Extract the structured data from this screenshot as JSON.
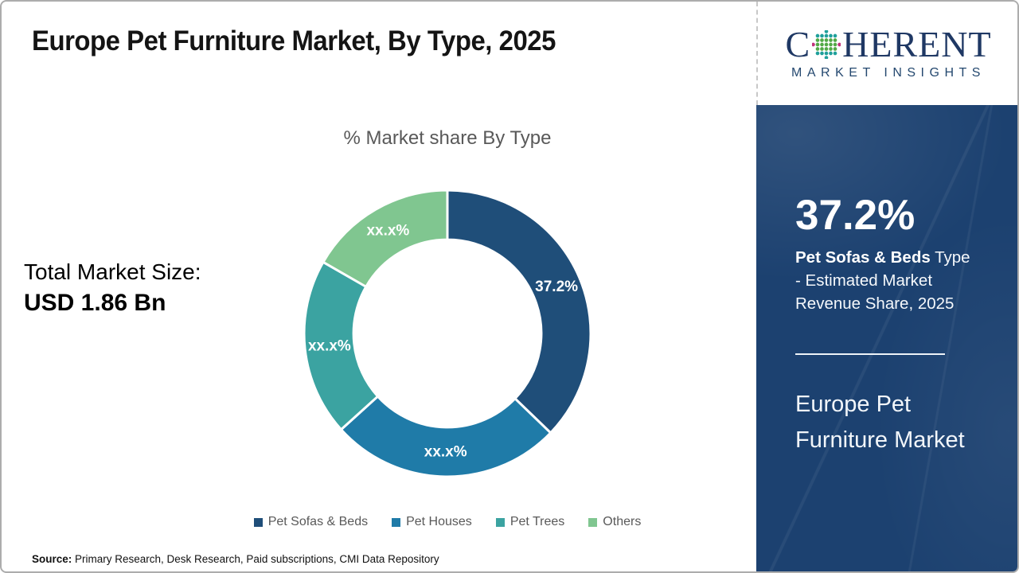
{
  "page": {
    "title": "Europe Pet Furniture Market, By Type, 2025",
    "source_label": "Source:",
    "source_text": " Primary Research, Desk Research, Paid subscriptions, CMI Data Repository"
  },
  "stats": {
    "total_label": "Total Market Size:",
    "total_value": "USD 1.86 Bn"
  },
  "chart_data": {
    "type": "pie",
    "subtype": "donut",
    "title": "% Market share By Type",
    "categories": [
      "Pet Sofas & Beds",
      "Pet Houses",
      "Pet Trees",
      "Others"
    ],
    "values": [
      37.2,
      26.1,
      20.0,
      16.7
    ],
    "labels": [
      "37.2%",
      "xx.x%",
      "xx.x%",
      "xx.x%"
    ],
    "colors": [
      "#1F4E79",
      "#1F7BA8",
      "#3BA3A1",
      "#80C690"
    ],
    "start_angle_deg": 0,
    "direction": "clockwise",
    "legend_position": "bottom",
    "inner_radius_ratio": 0.655
  },
  "sidebar": {
    "logo": {
      "part1": "C",
      "part2": "HERENT",
      "subtitle": "MARKET INSIGHTS",
      "navy": "#1F3864",
      "globe_colors": {
        "edge": "#C2327C",
        "middle": "#52A946",
        "core": "#1FA09B"
      }
    },
    "highlight_value": "37.2%",
    "highlight_bold": "Pet Sofas & Beds",
    "highlight_rest": " Type - Estimated Market Revenue Share, 2025",
    "panel_title": "Europe Pet Furniture Market",
    "panel_bg": "#1C4170"
  }
}
